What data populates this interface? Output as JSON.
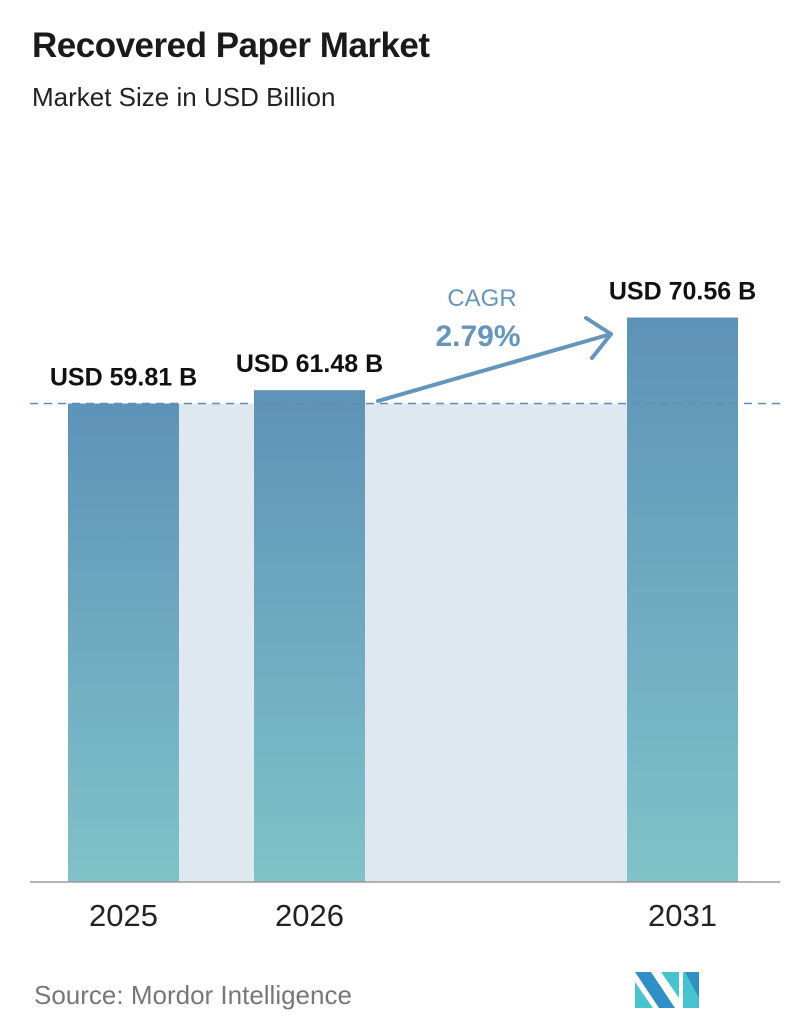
{
  "header": {
    "title": "Recovered Paper Market",
    "subtitle": "Market Size in USD Billion"
  },
  "chart_data": {
    "type": "bar",
    "title": "Recovered Paper Market",
    "subtitle": "Market Size in USD Billion",
    "categories": [
      "2025",
      "2026",
      "2031"
    ],
    "values": [
      59.81,
      61.48,
      70.56
    ],
    "data_labels": [
      "USD 59.81 B",
      "USD 61.48 B",
      "USD 70.56 B"
    ],
    "unit": "USD Billion",
    "ylim": [
      0,
      75
    ],
    "grid": false,
    "annotation": {
      "label": "CAGR",
      "value": "2.79%"
    },
    "colors": {
      "bar_top": "#5e92b8",
      "bar_bottom": "#7fc3c8",
      "band": "#dfe7ef",
      "cagr": "#6495bd",
      "reference_line": "#5f8db5"
    }
  },
  "footer": {
    "source": "Source:  Mordor Intelligence",
    "logo_text": "Mordor Intelligence"
  }
}
